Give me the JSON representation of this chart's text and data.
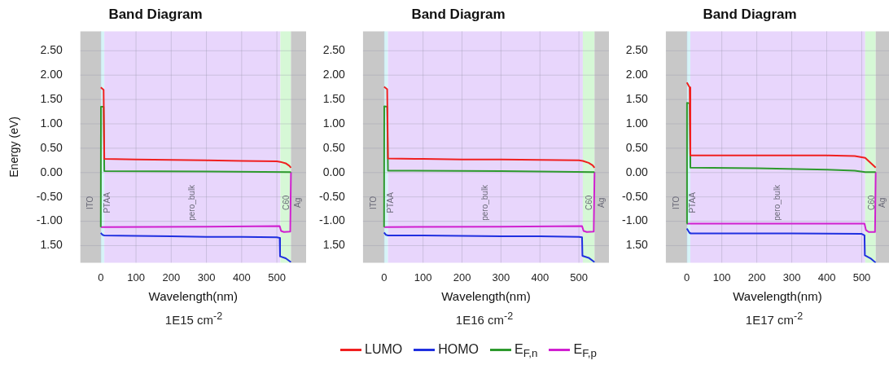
{
  "chart_data": [
    {
      "type": "line",
      "title": "Band Diagram",
      "xlabel": "Wavelength(nm)",
      "ylabel": "Energy (eV)",
      "annotations": [
        "1E15 cm$^{-2}$"
      ],
      "xlim": [
        -58,
        583
      ],
      "xticks": [
        0,
        100,
        200,
        300,
        400,
        500
      ],
      "ylim": [
        -1.85,
        2.9
      ],
      "yticks": [
        {
          "value": -1.5,
          "label": "1.50"
        },
        {
          "value": -1,
          "label": "-1.00"
        },
        {
          "value": -0.5,
          "label": "-0.50"
        },
        {
          "value": 0,
          "label": "0.00"
        },
        {
          "value": 0.5,
          "label": "0.50"
        },
        {
          "value": 1,
          "label": "1.00"
        },
        {
          "value": 1.5,
          "label": "1.50"
        },
        {
          "value": 2,
          "label": "2.00"
        },
        {
          "value": 2.5,
          "label": "2.50"
        }
      ],
      "grid": true,
      "legend": false,
      "marker": "none",
      "bands": [
        {
          "axis": "x",
          "from": -58,
          "to": 0,
          "label": "ITO",
          "color": "#c8c8c8"
        },
        {
          "axis": "x",
          "from": 0,
          "to": 10,
          "label": "PTAA",
          "color": "#d6f4f8"
        },
        {
          "axis": "x",
          "from": 10,
          "to": 510,
          "label": "pero_bulk",
          "color": "#e8d6fc"
        },
        {
          "axis": "x",
          "from": 510,
          "to": 540,
          "label": "C60",
          "color": "#d6f8d6"
        },
        {
          "axis": "x",
          "from": 540,
          "to": 583,
          "label": "Ag",
          "color": "#c8c8c8"
        }
      ],
      "series": [
        {
          "color": "#f02020",
          "x": [
            0,
            8,
            10,
            100,
            200,
            300,
            400,
            500,
            510,
            525,
            535,
            540
          ],
          "values": [
            1.75,
            1.7,
            0.28,
            0.27,
            0.26,
            0.25,
            0.24,
            0.23,
            0.22,
            0.19,
            0.14,
            0.1
          ]
        },
        {
          "color": "#2030e0",
          "x": [
            0,
            5,
            10,
            100,
            200,
            300,
            400,
            500,
            508,
            509,
            525,
            540
          ],
          "values": [
            -1.24,
            -1.28,
            -1.29,
            -1.3,
            -1.31,
            -1.32,
            -1.32,
            -1.33,
            -1.34,
            -1.72,
            -1.76,
            -1.84
          ]
        },
        {
          "color": "#2e9a2e",
          "x": [
            0,
            0.5,
            8,
            10,
            300,
            540
          ],
          "values": [
            -1.12,
            1.35,
            1.35,
            0.03,
            0.02,
            0.01
          ]
        },
        {
          "color": "#d020d0",
          "x": [
            0,
            300,
            508,
            512,
            520,
            538,
            540
          ],
          "values": [
            -1.12,
            -1.11,
            -1.1,
            -1.2,
            -1.22,
            -1.21,
            0.01
          ]
        }
      ]
    },
    {
      "type": "line",
      "title": "Band Diagram",
      "xlabel": "Wavelength(nm)",
      "annotations": [
        "1E16 cm$^{-2}$"
      ],
      "xlim": [
        -54,
        577
      ],
      "xticks": [
        0,
        100,
        200,
        300,
        400,
        500
      ],
      "ylim": [
        -1.85,
        2.9
      ],
      "yticks": [
        {
          "value": -1.5,
          "label": "1.50"
        },
        {
          "value": -1,
          "label": "-1.00"
        },
        {
          "value": -0.5,
          "label": "-0.50"
        },
        {
          "value": 0,
          "label": "0.00"
        },
        {
          "value": 0.5,
          "label": "0.50"
        },
        {
          "value": 1,
          "label": "1.00"
        },
        {
          "value": 1.5,
          "label": "1.50"
        },
        {
          "value": 2,
          "label": "2.00"
        },
        {
          "value": 2.5,
          "label": "2.50"
        }
      ],
      "grid": true,
      "legend": "bottom",
      "marker": "none",
      "bands": [
        {
          "axis": "x",
          "from": -54,
          "to": 0,
          "label": "ITO",
          "color": "#c8c8c8"
        },
        {
          "axis": "x",
          "from": 0,
          "to": 10,
          "label": "PTAA",
          "color": "#d6f4f8"
        },
        {
          "axis": "x",
          "from": 10,
          "to": 510,
          "label": "pero_bulk",
          "color": "#e8d6fc"
        },
        {
          "axis": "x",
          "from": 510,
          "to": 540,
          "label": "C60",
          "color": "#d6f8d6"
        },
        {
          "axis": "x",
          "from": 540,
          "to": 577,
          "label": "Ag",
          "color": "#c8c8c8"
        }
      ],
      "series": [
        {
          "name": "LUMO",
          "color": "#f02020",
          "x": [
            0,
            8,
            10,
            100,
            200,
            300,
            400,
            500,
            510,
            525,
            535,
            540
          ],
          "values": [
            1.76,
            1.71,
            0.29,
            0.28,
            0.27,
            0.27,
            0.26,
            0.25,
            0.24,
            0.2,
            0.15,
            0.1
          ]
        },
        {
          "name": "HOMO",
          "color": "#2030e0",
          "x": [
            0,
            5,
            10,
            100,
            200,
            300,
            400,
            500,
            508,
            509,
            525,
            540
          ],
          "values": [
            -1.23,
            -1.28,
            -1.29,
            -1.29,
            -1.3,
            -1.31,
            -1.31,
            -1.32,
            -1.33,
            -1.71,
            -1.75,
            -1.84
          ]
        },
        {
          "name": "E$_{F,n}$",
          "color": "#2e9a2e",
          "x": [
            0,
            0.5,
            8,
            10,
            300,
            540
          ],
          "values": [
            -1.12,
            1.36,
            1.35,
            0.04,
            0.03,
            0.01
          ]
        },
        {
          "name": "E$_{F,p}$",
          "color": "#d020d0",
          "x": [
            0,
            300,
            508,
            512,
            520,
            538,
            540
          ],
          "values": [
            -1.12,
            -1.11,
            -1.1,
            -1.2,
            -1.22,
            -1.21,
            0.01
          ]
        }
      ]
    },
    {
      "type": "line",
      "title": "Band Diagram",
      "xlabel": "Wavelength(nm)",
      "annotations": [
        "1E17 cm$^{-2}$"
      ],
      "xlim": [
        -60,
        578
      ],
      "xticks": [
        0,
        100,
        200,
        300,
        400,
        500
      ],
      "ylim": [
        -1.85,
        2.9
      ],
      "yticks": [
        {
          "value": -1.5,
          "label": "1.50"
        },
        {
          "value": -1,
          "label": "-1.00"
        },
        {
          "value": -0.5,
          "label": "-0.50"
        },
        {
          "value": 0,
          "label": "0.00"
        },
        {
          "value": 0.5,
          "label": "0.50"
        },
        {
          "value": 1,
          "label": "1.00"
        },
        {
          "value": 1.5,
          "label": "1.50"
        },
        {
          "value": 2,
          "label": "2.00"
        },
        {
          "value": 2.5,
          "label": "2.50"
        }
      ],
      "grid": true,
      "legend": false,
      "marker": "none",
      "bands": [
        {
          "axis": "x",
          "from": -60,
          "to": 0,
          "label": "ITO",
          "color": "#c8c8c8"
        },
        {
          "axis": "x",
          "from": 0,
          "to": 10,
          "label": "PTAA",
          "color": "#d6f4f8"
        },
        {
          "axis": "x",
          "from": 10,
          "to": 510,
          "label": "pero_bulk",
          "color": "#e8d6fc"
        },
        {
          "axis": "x",
          "from": 510,
          "to": 540,
          "label": "C60",
          "color": "#d6f8d6"
        },
        {
          "axis": "x",
          "from": 540,
          "to": 578,
          "label": "Ag",
          "color": "#c8c8c8"
        }
      ],
      "series": [
        {
          "color": "#f02020",
          "x": [
            0,
            8,
            10,
            200,
            400,
            480,
            510,
            525,
            540
          ],
          "values": [
            1.85,
            1.75,
            0.35,
            0.35,
            0.35,
            0.34,
            0.3,
            0.2,
            0.1
          ]
        },
        {
          "color": "#2030e0",
          "x": [
            0,
            8,
            10,
            300,
            500,
            508,
            509,
            525,
            540
          ],
          "values": [
            -1.15,
            -1.24,
            -1.25,
            -1.25,
            -1.26,
            -1.29,
            -1.7,
            -1.76,
            -1.85
          ]
        },
        {
          "color": "#2e9a2e",
          "x": [
            0,
            0.5,
            8,
            10,
            200,
            400,
            480,
            510,
            540
          ],
          "values": [
            -1.05,
            1.43,
            1.42,
            0.1,
            0.09,
            0.06,
            0.04,
            0.01,
            0.01
          ]
        },
        {
          "color": "#d020d0",
          "x": [
            0,
            300,
            508,
            512,
            520,
            538,
            540
          ],
          "values": [
            -1.05,
            -1.05,
            -1.05,
            -1.18,
            -1.22,
            -1.22,
            0.01
          ]
        }
      ]
    }
  ]
}
